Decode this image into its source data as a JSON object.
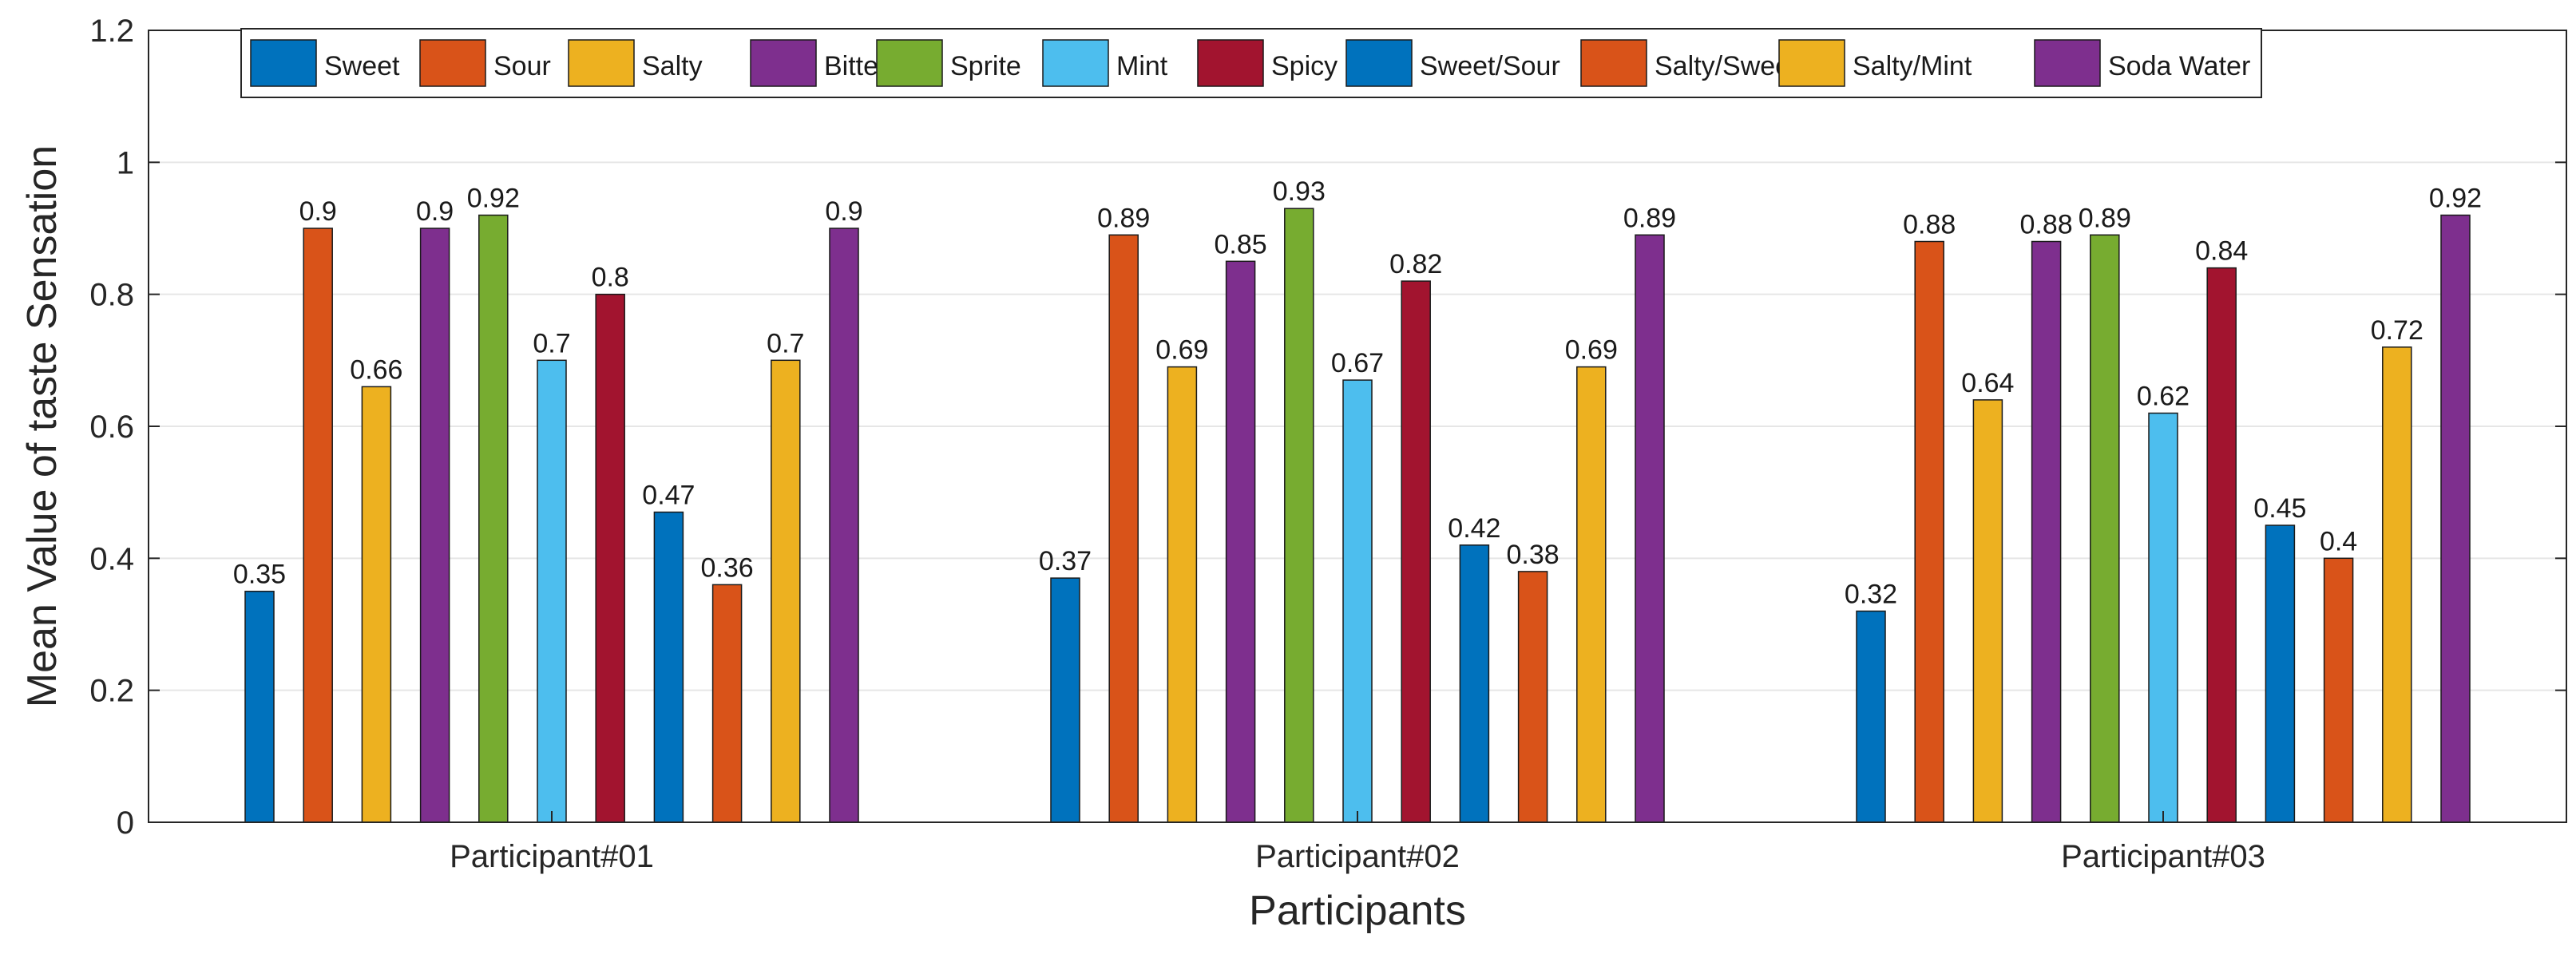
{
  "chart_data": {
    "type": "bar",
    "title": "",
    "xlabel": "Participants",
    "ylabel": "Mean Value of taste Sensation",
    "ylim": [
      0,
      1.2
    ],
    "yticks": [
      "0",
      "0.2",
      "0.4",
      "0.6",
      "0.8",
      "1",
      "1.2"
    ],
    "ytick_values": [
      0,
      0.2,
      0.4,
      0.6,
      0.8,
      1.0,
      1.2
    ],
    "grid": "horizontal",
    "legend_position": "top",
    "categories": [
      "Participant#01",
      "Participant#02",
      "Participant#03"
    ],
    "series": [
      {
        "name": "Sweet",
        "color": "#0072BD",
        "values": [
          0.35,
          0.37,
          0.32
        ],
        "labels": [
          "0.35",
          "0.37",
          "0.32"
        ]
      },
      {
        "name": "Sour",
        "color": "#D95319",
        "values": [
          0.9,
          0.89,
          0.88
        ],
        "labels": [
          "0.9",
          "0.89",
          "0.88"
        ]
      },
      {
        "name": "Salty",
        "color": "#EDB120",
        "values": [
          0.66,
          0.69,
          0.64
        ],
        "labels": [
          "0.66",
          "0.69",
          "0.64"
        ]
      },
      {
        "name": "Bitter",
        "color": "#7E2F8E",
        "values": [
          0.9,
          0.85,
          0.88
        ],
        "labels": [
          "0.9",
          "0.85",
          "0.88"
        ]
      },
      {
        "name": "Sprite",
        "color": "#77AC30",
        "values": [
          0.92,
          0.93,
          0.89
        ],
        "labels": [
          "0.92",
          "0.93",
          "0.89"
        ]
      },
      {
        "name": "Mint",
        "color": "#4DBEEE",
        "values": [
          0.7,
          0.67,
          0.62
        ],
        "labels": [
          "0.7",
          "0.67",
          "0.62"
        ]
      },
      {
        "name": "Spicy",
        "color": "#A2142F",
        "values": [
          0.8,
          0.82,
          0.84
        ],
        "labels": [
          "0.8",
          "0.82",
          "0.84"
        ]
      },
      {
        "name": "Sweet/Sour",
        "color": "#0072BD",
        "values": [
          0.47,
          0.42,
          0.45
        ],
        "labels": [
          "0.47",
          "0.42",
          "0.45"
        ]
      },
      {
        "name": "Salty/Sweet",
        "color": "#D95319",
        "values": [
          0.36,
          0.38,
          0.4
        ],
        "labels": [
          "0.36",
          "0.38",
          "0.4"
        ]
      },
      {
        "name": "Salty/Mint",
        "color": "#EDB120",
        "values": [
          0.7,
          0.69,
          0.72
        ],
        "labels": [
          "0.7",
          "0.69",
          "0.72"
        ]
      },
      {
        "name": "Soda Water",
        "color": "#7E2F8E",
        "values": [
          0.9,
          0.89,
          0.92
        ],
        "labels": [
          "0.9",
          "0.89",
          "0.92"
        ]
      }
    ]
  }
}
